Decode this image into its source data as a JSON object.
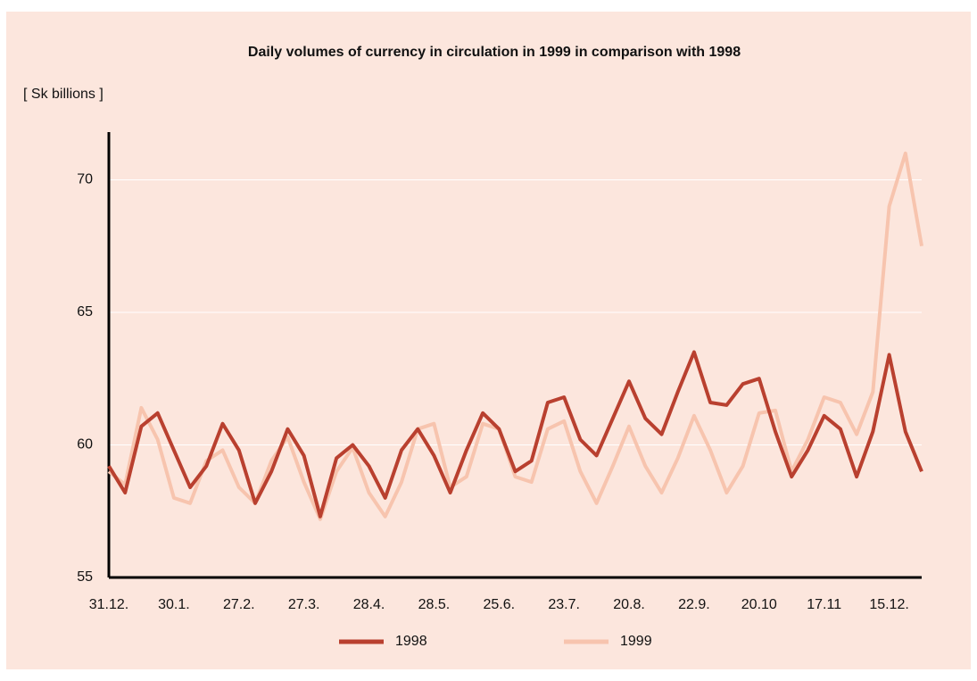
{
  "chart_data": {
    "type": "line",
    "title": "Daily volumes of currency in circulation in 1999 in comparison with 1998",
    "y_label": "[ Sk billions ]",
    "categories": [
      "31.12.",
      null,
      null,
      null,
      "30.1.",
      null,
      null,
      null,
      "27.2.",
      null,
      null,
      null,
      "27.3.",
      null,
      null,
      null,
      "28.4.",
      null,
      null,
      null,
      "28.5.",
      null,
      null,
      null,
      "25.6.",
      null,
      null,
      null,
      "23.7.",
      null,
      null,
      null,
      "20.8.",
      null,
      null,
      null,
      "22.9.",
      null,
      null,
      null,
      "20.10",
      null,
      null,
      null,
      "17.11",
      null,
      null,
      null,
      "15.12.",
      null,
      null
    ],
    "series": [
      {
        "name": "1998",
        "color": "#b9402f",
        "values": [
          59.2,
          58.2,
          60.7,
          61.2,
          59.8,
          58.4,
          59.2,
          60.8,
          59.8,
          57.8,
          59.0,
          60.6,
          59.6,
          57.3,
          59.5,
          60.0,
          59.2,
          58.0,
          59.8,
          60.6,
          59.6,
          58.2,
          59.8,
          61.2,
          60.6,
          59.0,
          59.4,
          61.6,
          61.8,
          60.2,
          59.6,
          61.0,
          62.4,
          61.0,
          60.4,
          62.0,
          63.5,
          61.6,
          61.5,
          62.3,
          62.5,
          60.5,
          58.8,
          59.8,
          61.1,
          60.6,
          58.8,
          60.5,
          63.4,
          60.5,
          59.0
        ]
      },
      {
        "name": "1999",
        "color": "#f7c4ae",
        "values": [
          59.0,
          58.5,
          61.4,
          60.2,
          58.0,
          57.8,
          59.4,
          59.8,
          58.4,
          57.8,
          59.4,
          60.3,
          58.6,
          57.2,
          59.0,
          59.9,
          58.2,
          57.3,
          58.6,
          60.6,
          60.8,
          58.4,
          58.8,
          60.8,
          60.6,
          58.8,
          58.6,
          60.6,
          60.9,
          59.0,
          57.8,
          59.2,
          60.7,
          59.2,
          58.2,
          59.5,
          61.1,
          59.8,
          58.2,
          59.2,
          61.2,
          61.3,
          59.0,
          60.2,
          61.8,
          61.6,
          60.4,
          62.0,
          69.0,
          71.0,
          67.5
        ]
      }
    ],
    "ylim": [
      55,
      71.8
    ],
    "yticks": [
      55,
      60,
      65,
      70
    ],
    "grid": true
  }
}
